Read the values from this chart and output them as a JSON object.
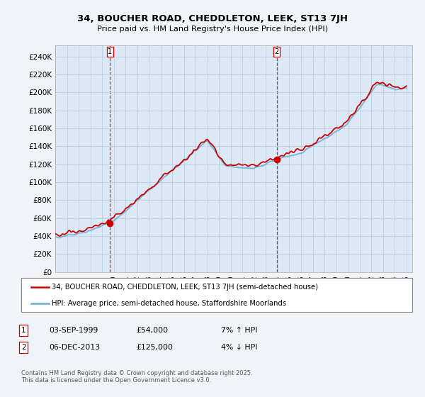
{
  "title_line1": "34, BOUCHER ROAD, CHEDDLETON, LEEK, ST13 7JH",
  "title_line2": "Price paid vs. HM Land Registry's House Price Index (HPI)",
  "y_ticks": [
    0,
    20000,
    40000,
    60000,
    80000,
    100000,
    120000,
    140000,
    160000,
    180000,
    200000,
    220000,
    240000
  ],
  "y_tick_labels": [
    "£0",
    "£20K",
    "£40K",
    "£60K",
    "£80K",
    "£100K",
    "£120K",
    "£140K",
    "£160K",
    "£180K",
    "£200K",
    "£220K",
    "£240K"
  ],
  "ylim": [
    0,
    252000
  ],
  "hpi_color": "#6baed6",
  "price_color": "#cc0000",
  "marker1_date": 1999.67,
  "marker1_value": 54000,
  "marker2_date": 2013.92,
  "marker2_value": 125000,
  "legend_line1": "34, BOUCHER ROAD, CHEDDLETON, LEEK, ST13 7JH (semi-detached house)",
  "legend_line2": "HPI: Average price, semi-detached house, Staffordshire Moorlands",
  "marker1_date_str": "03-SEP-1999",
  "marker1_price_str": "£54,000",
  "marker1_hpi_str": "7% ↑ HPI",
  "marker2_date_str": "06-DEC-2013",
  "marker2_price_str": "£125,000",
  "marker2_hpi_str": "4% ↓ HPI",
  "footnote": "Contains HM Land Registry data © Crown copyright and database right 2025.\nThis data is licensed under the Open Government Licence v3.0.",
  "bg_color": "#f0f4f8",
  "plot_bg_color": "#dce8f5",
  "grid_color": "#b8cfe0"
}
